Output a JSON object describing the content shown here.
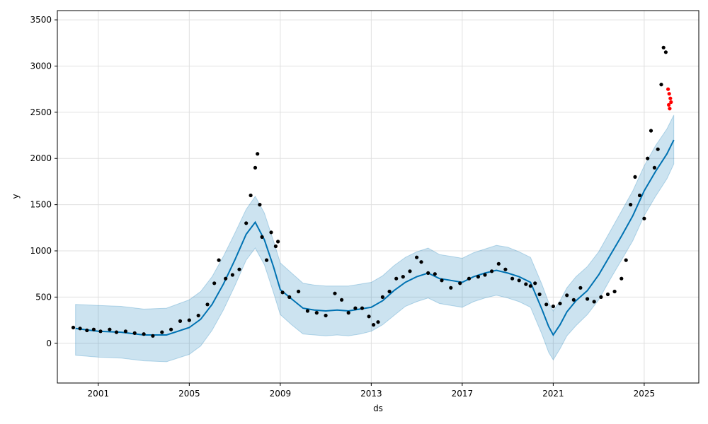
{
  "chart_data": {
    "type": "line",
    "title": "",
    "xlabel": "ds",
    "ylabel": "y",
    "xlim": [
      1999.2,
      2027.4
    ],
    "ylim": [
      -430,
      3600
    ],
    "grid": true,
    "x_ticks": [
      2001,
      2005,
      2009,
      2013,
      2017,
      2021,
      2025
    ],
    "x_tick_labels": [
      "2001",
      "2005",
      "2009",
      "2013",
      "2017",
      "2021",
      "2025"
    ],
    "y_ticks": [
      0,
      500,
      1000,
      1500,
      2000,
      2500,
      3000,
      3500
    ],
    "y_tick_labels": [
      "0",
      "500",
      "1000",
      "1500",
      "2000",
      "2500",
      "3000",
      "3500"
    ],
    "colors": {
      "forecast": "#0072B2",
      "interval_fill": "#0072B2",
      "observed": "#000000",
      "highlighted": "#ff0000"
    },
    "series": [
      {
        "kind": "forecast",
        "x": [
          2000.0,
          2001.0,
          2002.0,
          2003.0,
          2004.0,
          2005.0,
          2005.5,
          2006.0,
          2006.5,
          2007.0,
          2007.5,
          2007.9,
          2008.3,
          2008.7,
          2009.0,
          2009.5,
          2010.0,
          2010.5,
          2011.0,
          2011.5,
          2012.0,
          2012.5,
          2013.0,
          2013.5,
          2014.0,
          2014.5,
          2015.0,
          2015.5,
          2016.0,
          2016.5,
          2017.0,
          2017.5,
          2018.0,
          2018.5,
          2019.0,
          2019.5,
          2020.0,
          2020.5,
          2020.8,
          2021.0,
          2021.3,
          2021.6,
          2022.0,
          2022.5,
          2023.0,
          2023.5,
          2024.0,
          2024.5,
          2025.0,
          2025.5,
          2026.0,
          2026.3
        ],
        "y": [
          160,
          130,
          120,
          90,
          90,
          170,
          260,
          420,
          640,
          900,
          1180,
          1310,
          1120,
          830,
          580,
          480,
          380,
          360,
          350,
          360,
          350,
          370,
          390,
          460,
          570,
          660,
          720,
          760,
          700,
          680,
          660,
          720,
          760,
          790,
          760,
          720,
          660,
          370,
          180,
          90,
          200,
          340,
          460,
          570,
          740,
          950,
          1160,
          1380,
          1650,
          1860,
          2050,
          2200
        ]
      },
      {
        "kind": "interval_upper",
        "x": [
          2000.0,
          2001.0,
          2002.0,
          2003.0,
          2004.0,
          2005.0,
          2005.5,
          2006.0,
          2006.5,
          2007.0,
          2007.5,
          2007.9,
          2008.3,
          2008.7,
          2009.0,
          2009.5,
          2010.0,
          2010.5,
          2011.0,
          2011.5,
          2012.0,
          2012.5,
          2013.0,
          2013.5,
          2014.0,
          2014.5,
          2015.0,
          2015.5,
          2016.0,
          2016.5,
          2017.0,
          2017.5,
          2018.0,
          2018.5,
          2019.0,
          2019.5,
          2020.0,
          2020.5,
          2020.8,
          2021.0,
          2021.3,
          2021.6,
          2022.0,
          2022.5,
          2023.0,
          2023.5,
          2024.0,
          2024.5,
          2025.0,
          2025.5,
          2026.0,
          2026.3
        ],
        "y": [
          420,
          410,
          400,
          370,
          380,
          470,
          560,
          720,
          940,
          1190,
          1450,
          1590,
          1410,
          1110,
          870,
          760,
          650,
          630,
          620,
          620,
          620,
          640,
          660,
          730,
          840,
          930,
          990,
          1030,
          960,
          940,
          920,
          980,
          1020,
          1060,
          1040,
          990,
          930,
          640,
          440,
          350,
          460,
          600,
          720,
          830,
          990,
          1210,
          1430,
          1650,
          1920,
          2140,
          2320,
          2470
        ]
      },
      {
        "kind": "interval_lower",
        "x": [
          2000.0,
          2001.0,
          2002.0,
          2003.0,
          2004.0,
          2005.0,
          2005.5,
          2006.0,
          2006.5,
          2007.0,
          2007.5,
          2007.9,
          2008.3,
          2008.7,
          2009.0,
          2009.5,
          2010.0,
          2010.5,
          2011.0,
          2011.5,
          2012.0,
          2012.5,
          2013.0,
          2013.5,
          2014.0,
          2014.5,
          2015.0,
          2015.5,
          2016.0,
          2016.5,
          2017.0,
          2017.5,
          2018.0,
          2018.5,
          2019.0,
          2019.5,
          2020.0,
          2020.5,
          2020.8,
          2021.0,
          2021.3,
          2021.6,
          2022.0,
          2022.5,
          2023.0,
          2023.5,
          2024.0,
          2024.5,
          2025.0,
          2025.5,
          2026.0,
          2026.3
        ],
        "y": [
          -130,
          -150,
          -160,
          -190,
          -200,
          -120,
          -30,
          140,
          360,
          620,
          900,
          1030,
          850,
          550,
          310,
          200,
          100,
          90,
          80,
          90,
          80,
          100,
          130,
          200,
          300,
          400,
          450,
          490,
          430,
          410,
          390,
          450,
          490,
          520,
          490,
          450,
          390,
          100,
          -100,
          -180,
          -60,
          80,
          190,
          310,
          470,
          690,
          900,
          1110,
          1380,
          1590,
          1780,
          1940
        ]
      },
      {
        "kind": "observed",
        "x": [
          1999.9,
          2000.2,
          2000.5,
          2000.8,
          2001.1,
          2001.5,
          2001.8,
          2002.2,
          2002.6,
          2003.0,
          2003.4,
          2003.8,
          2004.2,
          2004.6,
          2005.0,
          2005.4,
          2005.8,
          2006.1,
          2006.3,
          2006.6,
          2006.9,
          2007.2,
          2007.5,
          2007.7,
          2007.9,
          2008.0,
          2008.1,
          2008.2,
          2008.4,
          2008.6,
          2008.8,
          2008.9,
          2009.1,
          2009.4,
          2009.8,
          2010.2,
          2010.6,
          2011.0,
          2011.4,
          2011.7,
          2012.0,
          2012.3,
          2012.6,
          2012.9,
          2013.1,
          2013.3,
          2013.5,
          2013.8,
          2014.1,
          2014.4,
          2014.7,
          2015.0,
          2015.2,
          2015.5,
          2015.8,
          2016.1,
          2016.5,
          2016.9,
          2017.3,
          2017.7,
          2018.0,
          2018.3,
          2018.6,
          2018.9,
          2019.2,
          2019.5,
          2019.8,
          2020.0,
          2020.2,
          2020.4,
          2020.7,
          2021.0,
          2021.3,
          2021.6,
          2021.9,
          2022.2,
          2022.5,
          2022.8,
          2023.1,
          2023.4,
          2023.7,
          2024.0,
          2024.2,
          2024.4,
          2024.6,
          2024.8,
          2025.0,
          2025.15,
          2025.3,
          2025.45,
          2025.6,
          2025.75,
          2025.85,
          2025.95
        ],
        "y": [
          170,
          160,
          140,
          150,
          130,
          150,
          120,
          130,
          110,
          100,
          80,
          120,
          150,
          240,
          250,
          300,
          420,
          650,
          900,
          700,
          740,
          800,
          1300,
          1600,
          1900,
          2050,
          1500,
          1150,
          900,
          1200,
          1050,
          1100,
          550,
          500,
          560,
          350,
          330,
          300,
          540,
          470,
          330,
          380,
          380,
          290,
          200,
          230,
          500,
          560,
          700,
          720,
          780,
          930,
          880,
          760,
          750,
          680,
          600,
          650,
          700,
          720,
          740,
          780,
          860,
          800,
          700,
          680,
          640,
          620,
          650,
          530,
          420,
          400,
          430,
          520,
          470,
          600,
          480,
          450,
          500,
          530,
          560,
          700,
          900,
          1500,
          1800,
          1600,
          1350,
          2000,
          2300,
          1900,
          2100,
          2800,
          3200,
          3150
        ]
      },
      {
        "kind": "highlighted",
        "x": [
          2026.05,
          2026.08,
          2026.1,
          2026.12,
          2026.15,
          2026.18
        ],
        "y": [
          2750,
          2580,
          2700,
          2540,
          2650,
          2610
        ]
      }
    ]
  }
}
